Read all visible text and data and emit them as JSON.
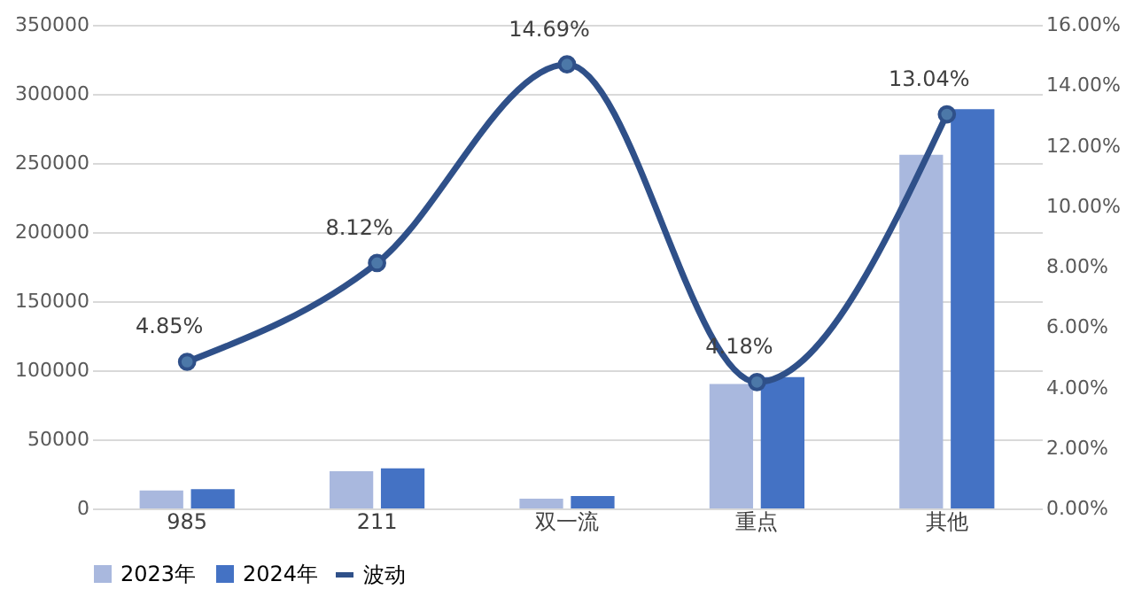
{
  "chart_data": {
    "type": "bar",
    "categories": [
      "985",
      "211",
      "双一流",
      "重点",
      "其他"
    ],
    "series": [
      {
        "name": "2023年",
        "color": "#a9b8de",
        "values": [
          13000,
          27000,
          7000,
          90000,
          256000
        ]
      },
      {
        "name": "2024年",
        "color": "#4472c4",
        "values": [
          14000,
          29000,
          9000,
          95000,
          289000
        ]
      },
      {
        "name": "波动",
        "type": "line",
        "axis": "y2",
        "color": "#2f5089",
        "marker": "circle",
        "line_style": "solid",
        "values": [
          4.85,
          8.12,
          14.69,
          4.18,
          13.04
        ],
        "value_labels": [
          "4.85%",
          "8.12%",
          "14.69%",
          "4.18%",
          "13.04%"
        ]
      }
    ],
    "ylim": [
      0,
      350000
    ],
    "yticks": [
      0,
      50000,
      100000,
      150000,
      200000,
      250000,
      300000,
      350000
    ],
    "y2lim": [
      0,
      16
    ],
    "y2ticks": [
      {
        "value": 0,
        "label": "0.00%"
      },
      {
        "value": 2,
        "label": "2.00%"
      },
      {
        "value": 4,
        "label": "4.00%"
      },
      {
        "value": 6,
        "label": "6.00%"
      },
      {
        "value": 8,
        "label": "8.00%"
      },
      {
        "value": 10,
        "label": "10.00%"
      },
      {
        "value": 12,
        "label": "12.00%"
      },
      {
        "value": 14,
        "label": "14.00%"
      },
      {
        "value": 16,
        "label": "16.00%"
      }
    ],
    "grid": "y",
    "legend": "bottom"
  }
}
